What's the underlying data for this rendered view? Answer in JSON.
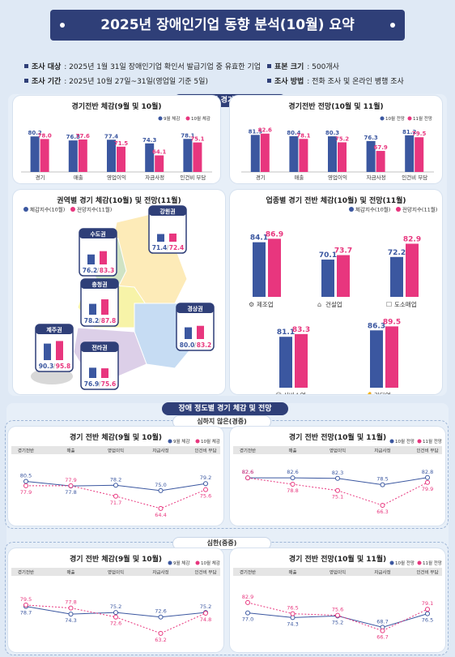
{
  "title": "2025년 장애인기업 동향 분석(10월) 요약",
  "info": {
    "target_label": "조사 대상",
    "target_value": ": 2025년 1월 31일 장애인기업 확인서 발급기업 중 유효한 기업",
    "sample_label": "표본 크기",
    "sample_value": ": 500개사",
    "period_label": "조사 기간",
    "period_value": ": 2025년 10월 27일~31일(영업일 기준 5일)",
    "method_label": "조사 방법",
    "method_value": ": 전화 조사 및 온라인 병행 조사"
  },
  "sections": {
    "top": "장애인기업 경기 체감 및 전망",
    "disability": "장애 정도별 경기 체감 및 전망",
    "mild": "심하지 않은(경증)",
    "severe": "심한(중증)"
  },
  "colors": {
    "blue": "#3b57a0",
    "pink": "#e8367e",
    "navy": "#2f3f78"
  },
  "chart_data": [
    {
      "id": "overall_feel",
      "type": "bar",
      "title": "경기전반 체감(9월 및 10월)",
      "categories": [
        "경기",
        "매출",
        "영업이익",
        "자금사정",
        "인건비 부담"
      ],
      "series": [
        {
          "name": "9월 체감",
          "values": [
            80.2,
            76.8,
            77.4,
            74.3,
            78.1
          ]
        },
        {
          "name": "10월 체감",
          "values": [
            78.0,
            77.6,
            71.5,
            64.1,
            75.1
          ]
        }
      ],
      "ylim": [
        50,
        90
      ]
    },
    {
      "id": "overall_outlook",
      "type": "bar",
      "title": "경기전반 전망(10월 및 11월)",
      "categories": [
        "경기",
        "매출",
        "영업이익",
        "자금사정",
        "인건비 부담"
      ],
      "series": [
        {
          "name": "10월 전망",
          "values": [
            81.5,
            80.4,
            80.3,
            76.3,
            81.2
          ]
        },
        {
          "name": "11월 전망",
          "values": [
            82.6,
            78.1,
            75.2,
            67.9,
            79.5
          ]
        }
      ],
      "ylim": [
        50,
        90
      ]
    },
    {
      "id": "region",
      "type": "bar",
      "title": "권역별 경기 체감(10월) 및 전망(11월)",
      "categories": [
        "수도권",
        "강원권",
        "충청권",
        "경상권",
        "제주권",
        "전라권"
      ],
      "series": [
        {
          "name": "체감지수(10월)",
          "values": [
            76.2,
            71.4,
            78.2,
            80.0,
            90.3,
            76.9
          ]
        },
        {
          "name": "전망지수(11월)",
          "values": [
            83.3,
            72.4,
            87.8,
            83.2,
            95.8,
            75.6
          ]
        }
      ]
    },
    {
      "id": "industry",
      "type": "bar",
      "title": "업종별 경기 전반 체감(10월) 및 전망(11월)",
      "categories": [
        "제조업",
        "건설업",
        "도소매업",
        "서비스업",
        "기타업"
      ],
      "series": [
        {
          "name": "체감지수(10월)",
          "values": [
            84.1,
            70.1,
            72.2,
            81.1,
            86.3
          ]
        },
        {
          "name": "전망지수(11월)",
          "values": [
            86.9,
            73.7,
            82.9,
            83.3,
            89.5
          ]
        }
      ],
      "ylim": [
        40,
        95
      ]
    },
    {
      "id": "mild_feel",
      "type": "line",
      "title": "경기 전반 체감(9월 및 10월)",
      "categories": [
        "경기전반",
        "매출",
        "영업이익",
        "자금사정",
        "인건비 부담"
      ],
      "series": [
        {
          "name": "9월 체감",
          "values": [
            80.5,
            77.8,
            78.2,
            75.0,
            79.2
          ]
        },
        {
          "name": "10월 체감",
          "values": [
            77.9,
            77.9,
            71.7,
            64.4,
            75.6
          ]
        }
      ],
      "ylim": [
        60,
        88
      ]
    },
    {
      "id": "mild_outlook",
      "type": "line",
      "title": "경기 전반 전망(10월 및 11월)",
      "categories": [
        "경기전반",
        "매출",
        "영업이익",
        "자금사정",
        "인건비 부담"
      ],
      "series": [
        {
          "name": "10월 전망",
          "values": [
            82.6,
            82.6,
            82.3,
            78.5,
            82.8
          ]
        },
        {
          "name": "11월 전망",
          "values": [
            82.6,
            78.8,
            75.1,
            66.3,
            79.9
          ]
        }
      ],
      "ylim": [
        60,
        88
      ]
    },
    {
      "id": "severe_feel",
      "type": "line",
      "title": "경기 전반 체감(9월 및 10월)",
      "categories": [
        "경기전반",
        "매출",
        "영업이익",
        "자금사정",
        "인건비 부담"
      ],
      "series": [
        {
          "name": "9월 체감",
          "values": [
            78.7,
            74.3,
            75.2,
            72.6,
            75.2
          ]
        },
        {
          "name": "10월 체감",
          "values": [
            79.5,
            77.8,
            72.6,
            63.2,
            74.8
          ]
        }
      ],
      "ylim": [
        58,
        86
      ]
    },
    {
      "id": "severe_outlook",
      "type": "line",
      "title": "경기 전반 전망(10월 및 11월)",
      "categories": [
        "경기전반",
        "매출",
        "영업이익",
        "자금사정",
        "인건비 부담"
      ],
      "series": [
        {
          "name": "10월 전망",
          "values": [
            77.0,
            74.3,
            75.2,
            68.7,
            76.5
          ]
        },
        {
          "name": "11월 전망",
          "values": [
            82.9,
            76.5,
            75.6,
            66.7,
            79.1
          ]
        }
      ],
      "ylim": [
        60,
        88
      ]
    }
  ]
}
